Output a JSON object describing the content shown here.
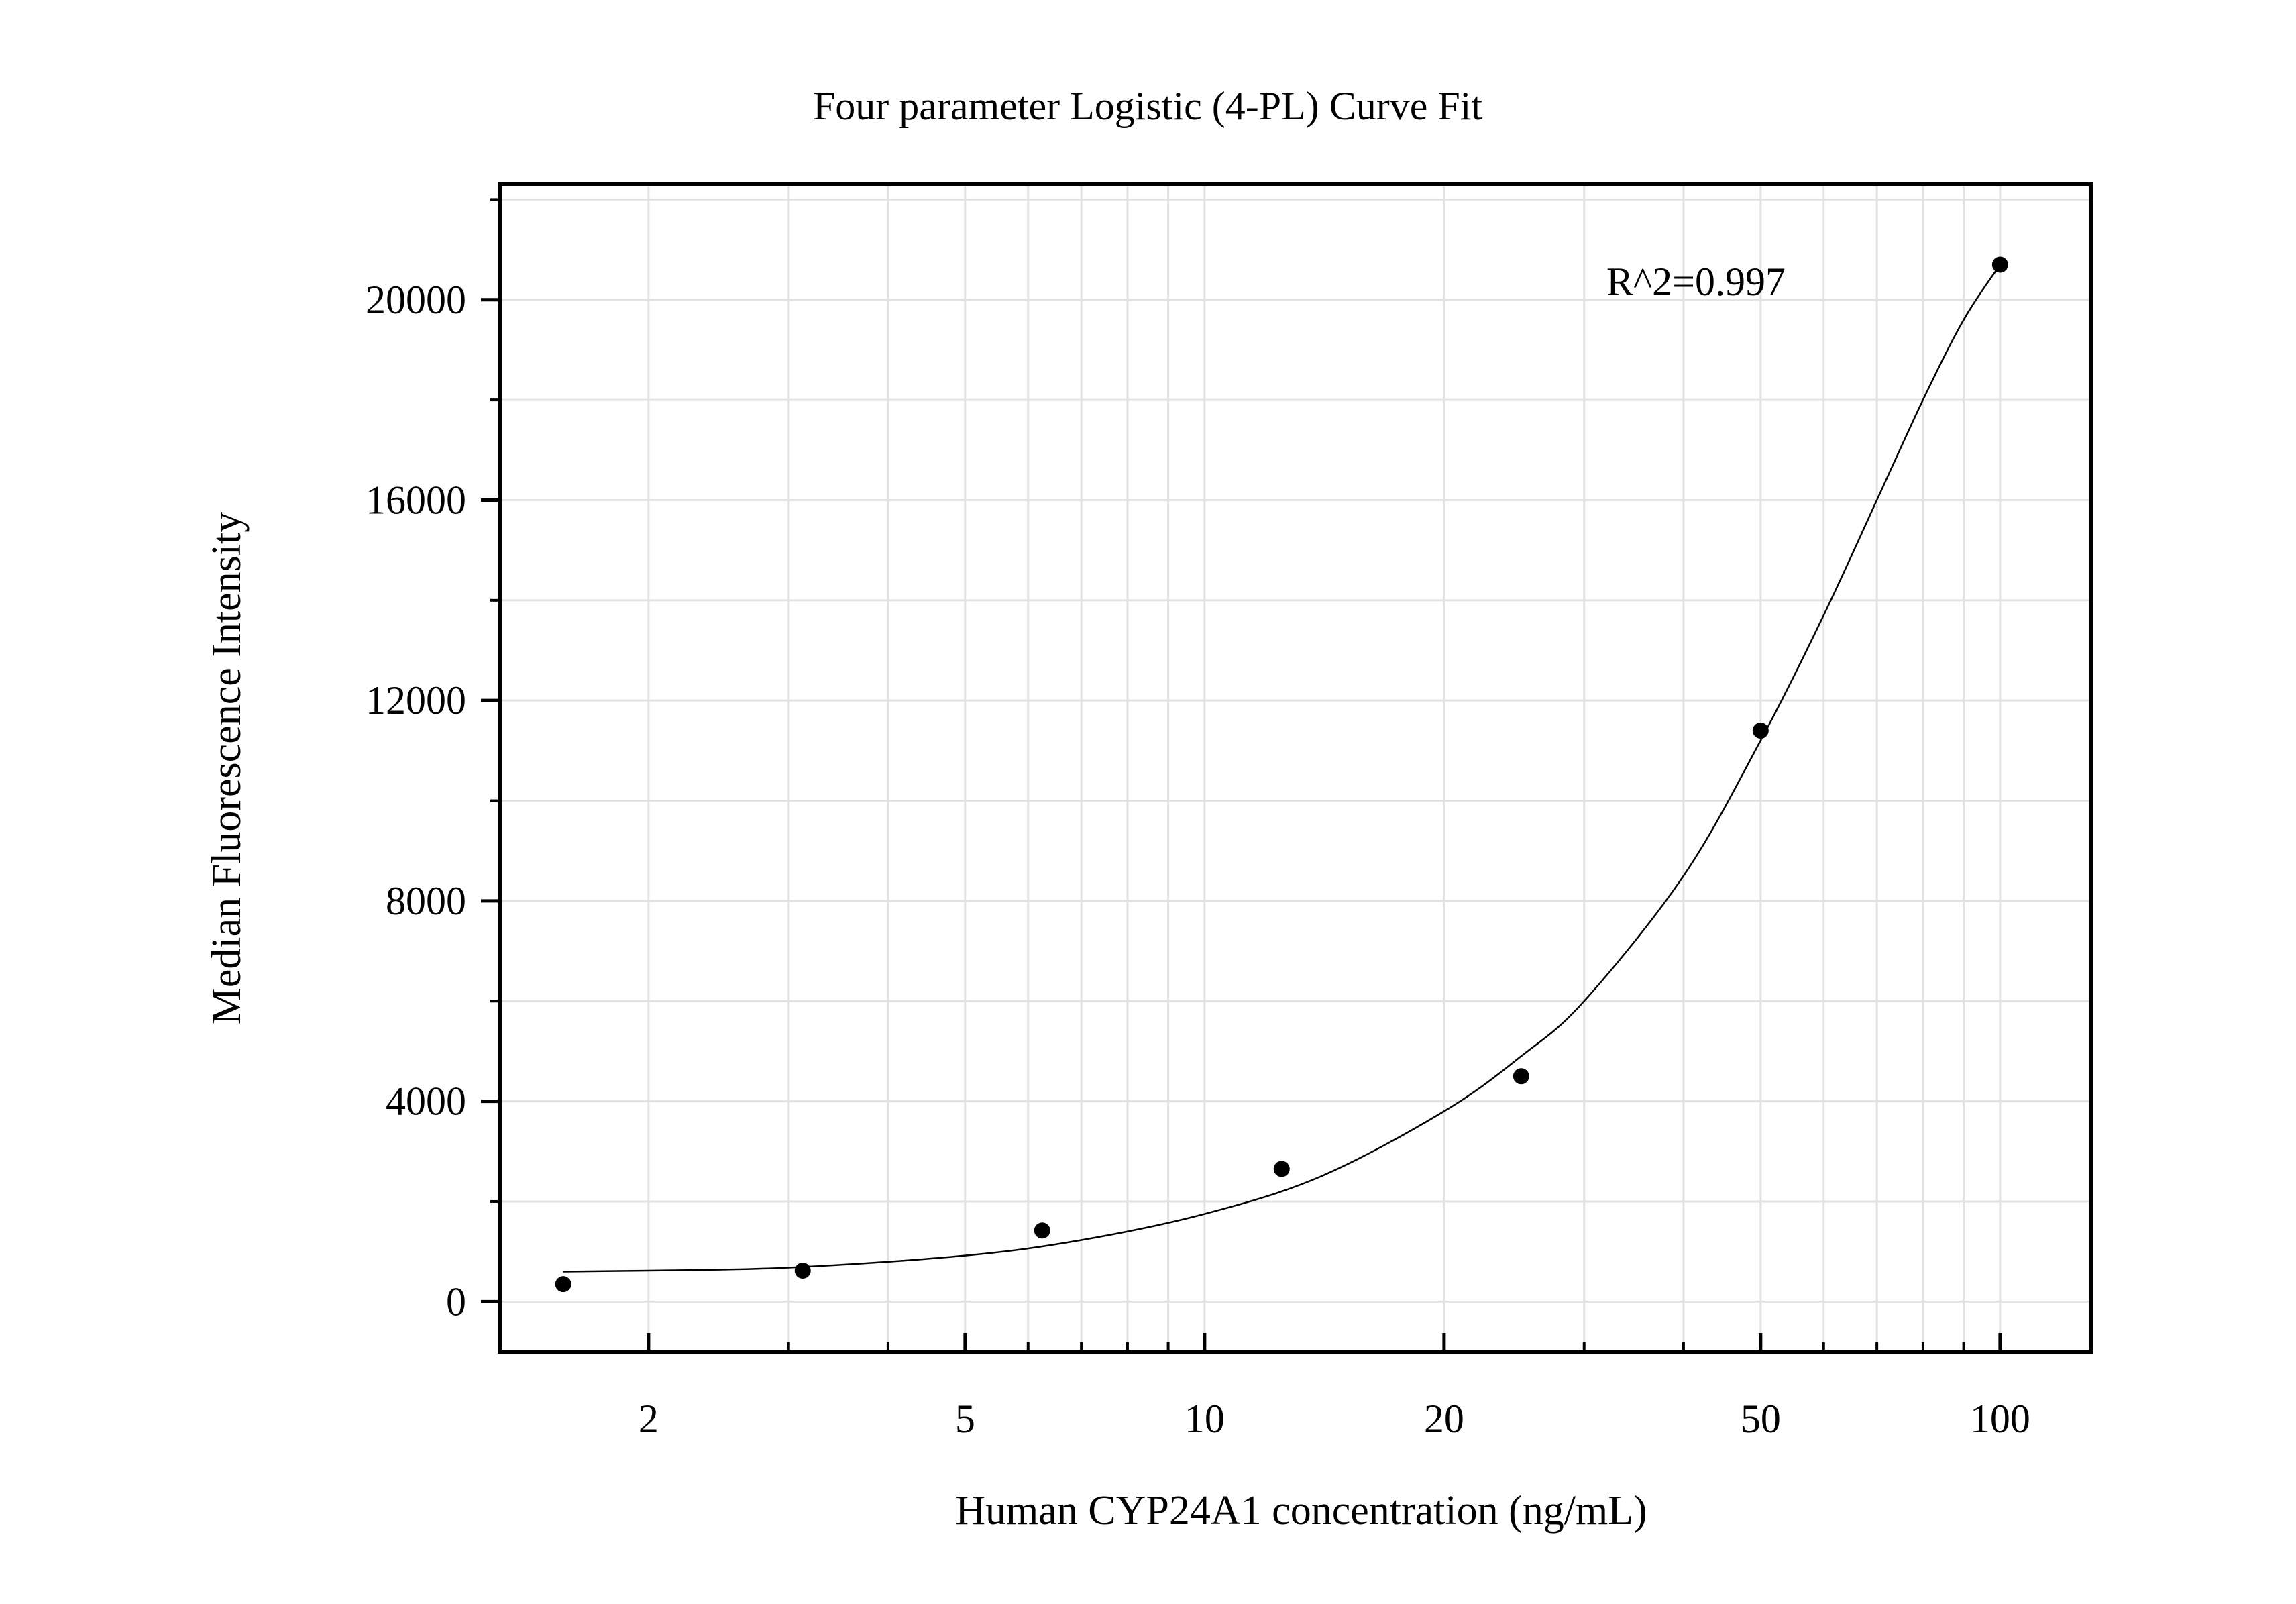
{
  "chart_data": {
    "type": "scatter",
    "title": "Four parameter Logistic (4-PL) Curve Fit",
    "xlabel": "Human CYP24A1 concentration (ng/mL)",
    "ylabel": "Median Fluorescence Intensity",
    "x_scale": "log",
    "xlim": [
      1.3,
      130
    ],
    "ylim": [
      -1000,
      22300
    ],
    "x_ticks": [
      {
        "value": 2,
        "label": "2"
      },
      {
        "value": 5,
        "label": "5"
      },
      {
        "value": 10,
        "label": "10"
      },
      {
        "value": 20,
        "label": "20"
      },
      {
        "value": 50,
        "label": "50"
      },
      {
        "value": 100,
        "label": "100"
      }
    ],
    "y_ticks": [
      {
        "value": 0,
        "label": "0"
      },
      {
        "value": 4000,
        "label": "4000"
      },
      {
        "value": 8000,
        "label": "8000"
      },
      {
        "value": 12000,
        "label": "12000"
      },
      {
        "value": 16000,
        "label": "16000"
      },
      {
        "value": 20000,
        "label": "20000"
      }
    ],
    "grid": true,
    "annotation": "R^2=0.997",
    "points": [
      {
        "x": 1.5625,
        "y": 350
      },
      {
        "x": 3.125,
        "y": 620
      },
      {
        "x": 6.25,
        "y": 1420
      },
      {
        "x": 12.5,
        "y": 2650
      },
      {
        "x": 25,
        "y": 4500
      },
      {
        "x": 50,
        "y": 11400
      },
      {
        "x": 100,
        "y": 20700
      }
    ],
    "curve": [
      {
        "x": 1.5625,
        "y": 600
      },
      {
        "x": 2,
        "y": 620
      },
      {
        "x": 3,
        "y": 680
      },
      {
        "x": 5,
        "y": 920
      },
      {
        "x": 7,
        "y": 1230
      },
      {
        "x": 10,
        "y": 1750
      },
      {
        "x": 14,
        "y": 2500
      },
      {
        "x": 20,
        "y": 3800
      },
      {
        "x": 25,
        "y": 4900
      },
      {
        "x": 30,
        "y": 6000
      },
      {
        "x": 40,
        "y": 8500
      },
      {
        "x": 50,
        "y": 11200
      },
      {
        "x": 60,
        "y": 13700
      },
      {
        "x": 70,
        "y": 16000
      },
      {
        "x": 80,
        "y": 18000
      },
      {
        "x": 90,
        "y": 19600
      },
      {
        "x": 100,
        "y": 20700
      }
    ]
  }
}
